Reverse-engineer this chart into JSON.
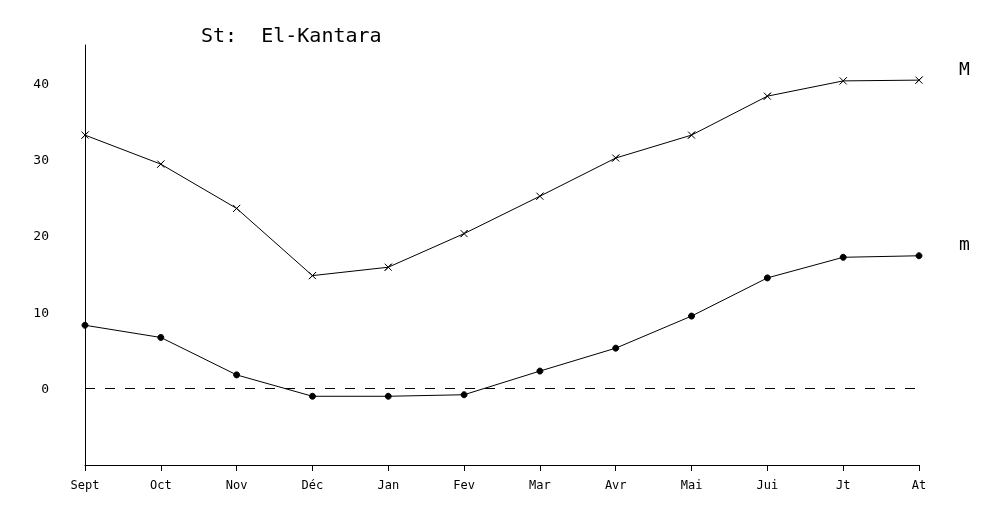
{
  "chart_data": {
    "type": "line",
    "title": "St:  El-Kantara",
    "categories": [
      "Sept",
      "Oct",
      "Nov",
      "Déc",
      "Jan",
      "Fev",
      "Mar",
      "Avr",
      "Mai",
      "Jui",
      "Jt",
      "At"
    ],
    "series": [
      {
        "name": "M",
        "color": "#000000",
        "marker": "cross",
        "values": [
          33.2,
          29.4,
          23.6,
          14.8,
          15.9,
          20.3,
          25.2,
          30.2,
          33.2,
          38.3,
          40.3,
          40.4
        ]
      },
      {
        "name": "m",
        "color": "#000000",
        "marker": "circle",
        "values": [
          8.3,
          6.7,
          1.8,
          -1.0,
          -1.0,
          -0.8,
          2.3,
          5.3,
          9.5,
          14.5,
          17.2,
          17.4
        ]
      }
    ],
    "ylim": [
      -10,
      45
    ],
    "yticks": [
      0,
      10,
      20,
      30,
      40
    ],
    "grid": false,
    "legend": false,
    "line_style": "solid",
    "ref_lines": [
      {
        "axis": "y",
        "value": 0,
        "line_style": "dashed",
        "color": "#000000"
      }
    ]
  }
}
